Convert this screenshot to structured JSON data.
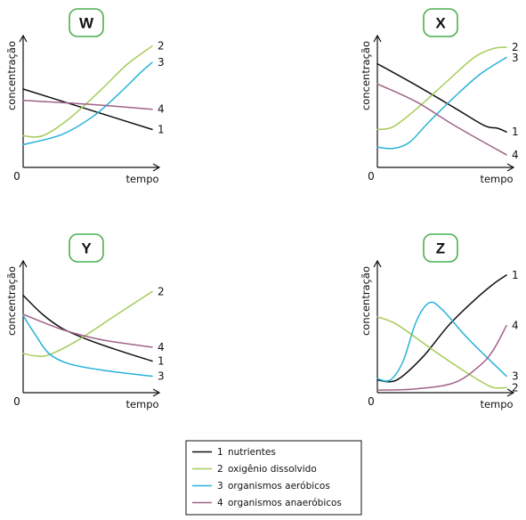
{
  "colors": {
    "nutrientes": "#111111",
    "oxigenio": "#a6cc5a",
    "aerobicos": "#27b2d8",
    "anaerobicos": "#a0628a",
    "badge_border": "#4caf50"
  },
  "chart_data": [
    {
      "type": "line",
      "panel": "W",
      "xlabel": "tempo",
      "ylabel": "concentração",
      "origin": "0",
      "xlim": [
        0,
        10
      ],
      "ylim": [
        0,
        10
      ],
      "series": [
        {
          "label": "1",
          "key": "nutrientes",
          "points": [
            [
              0,
              6.2
            ],
            [
              5,
              4.6
            ],
            [
              10,
              3.0
            ]
          ]
        },
        {
          "label": "2",
          "key": "oxigenio",
          "points": [
            [
              0,
              2.5
            ],
            [
              1.5,
              2.5
            ],
            [
              3.5,
              3.8
            ],
            [
              6,
              6.1
            ],
            [
              8,
              8.1
            ],
            [
              10,
              9.6
            ]
          ]
        },
        {
          "label": "3",
          "key": "aerobicos",
          "points": [
            [
              0,
              1.8
            ],
            [
              3,
              2.6
            ],
            [
              5.5,
              4.1
            ],
            [
              7.5,
              5.9
            ],
            [
              9,
              7.4
            ],
            [
              10,
              8.3
            ]
          ]
        },
        {
          "label": "4",
          "key": "anaerobicos",
          "points": [
            [
              0,
              5.3
            ],
            [
              5,
              5.0
            ],
            [
              10,
              4.6
            ]
          ]
        }
      ]
    },
    {
      "type": "line",
      "panel": "X",
      "xlabel": "tempo",
      "ylabel": "concentração",
      "origin": "0",
      "xlim": [
        0,
        10
      ],
      "ylim": [
        0,
        10
      ],
      "series": [
        {
          "label": "1",
          "key": "nutrientes",
          "points": [
            [
              0,
              8.2
            ],
            [
              3,
              6.5
            ],
            [
              6,
              4.7
            ],
            [
              8.3,
              3.3
            ],
            [
              9.3,
              3.1
            ],
            [
              10,
              2.8
            ]
          ]
        },
        {
          "label": "2",
          "key": "oxigenio",
          "points": [
            [
              0,
              3.0
            ],
            [
              1.2,
              3.2
            ],
            [
              3,
              4.6
            ],
            [
              5.5,
              6.9
            ],
            [
              7.5,
              8.7
            ],
            [
              9,
              9.4
            ],
            [
              10,
              9.5
            ]
          ]
        },
        {
          "label": "3",
          "key": "aerobicos",
          "points": [
            [
              0,
              1.6
            ],
            [
              1.2,
              1.5
            ],
            [
              2.5,
              2.0
            ],
            [
              4,
              3.6
            ],
            [
              6,
              5.6
            ],
            [
              8,
              7.4
            ],
            [
              10,
              8.7
            ]
          ]
        },
        {
          "label": "4",
          "key": "anaerobicos",
          "points": [
            [
              0,
              6.6
            ],
            [
              3,
              5.2
            ],
            [
              6,
              3.3
            ],
            [
              10,
              1.0
            ]
          ]
        }
      ]
    },
    {
      "type": "line",
      "panel": "Y",
      "xlabel": "tempo",
      "ylabel": "concentração",
      "origin": "0",
      "xlim": [
        0,
        10
      ],
      "ylim": [
        0,
        10
      ],
      "series": [
        {
          "label": "1",
          "key": "nutrientes",
          "points": [
            [
              0,
              7.7
            ],
            [
              1.5,
              6.2
            ],
            [
              3,
              5.1
            ],
            [
              5,
              4.2
            ],
            [
              7.5,
              3.3
            ],
            [
              10,
              2.5
            ]
          ]
        },
        {
          "label": "2",
          "key": "oxigenio",
          "points": [
            [
              0,
              3.1
            ],
            [
              1,
              2.9
            ],
            [
              2,
              3.0
            ],
            [
              4,
              4.0
            ],
            [
              7,
              6.0
            ],
            [
              10,
              8.0
            ]
          ]
        },
        {
          "label": "3",
          "key": "aerobicos",
          "points": [
            [
              0,
              6.1
            ],
            [
              1,
              4.5
            ],
            [
              2,
              3.1
            ],
            [
              3.5,
              2.3
            ],
            [
              6,
              1.8
            ],
            [
              10,
              1.3
            ]
          ]
        },
        {
          "label": "4",
          "key": "anaerobicos",
          "points": [
            [
              0,
              6.2
            ],
            [
              3,
              5.0
            ],
            [
              6,
              4.2
            ],
            [
              10,
              3.6
            ]
          ]
        }
      ]
    },
    {
      "type": "line",
      "panel": "Z",
      "xlabel": "tempo",
      "ylabel": "concentração",
      "origin": "0",
      "xlim": [
        0,
        10
      ],
      "ylim": [
        0,
        10
      ],
      "series": [
        {
          "label": "1",
          "key": "nutrientes",
          "points": [
            [
              0,
              1.0
            ],
            [
              1.5,
              1.0
            ],
            [
              3.5,
              2.8
            ],
            [
              5.5,
              5.3
            ],
            [
              7.5,
              7.3
            ],
            [
              9,
              8.6
            ],
            [
              10,
              9.3
            ]
          ]
        },
        {
          "label": "2",
          "key": "oxigenio",
          "points": [
            [
              0,
              6.0
            ],
            [
              1.5,
              5.4
            ],
            [
              4,
              3.6
            ],
            [
              6,
              2.2
            ],
            [
              8,
              0.9
            ],
            [
              9,
              0.4
            ],
            [
              10,
              0.4
            ]
          ]
        },
        {
          "label": "3",
          "key": "aerobicos",
          "points": [
            [
              0,
              1.1
            ],
            [
              1,
              1.0
            ],
            [
              2,
              2.5
            ],
            [
              3,
              5.6
            ],
            [
              4,
              7.1
            ],
            [
              5,
              6.6
            ],
            [
              7,
              4.3
            ],
            [
              10,
              1.3
            ]
          ]
        },
        {
          "label": "4",
          "key": "anaerobicos",
          "points": [
            [
              0,
              0.2
            ],
            [
              3,
              0.3
            ],
            [
              6,
              0.8
            ],
            [
              8,
              2.2
            ],
            [
              9,
              3.4
            ],
            [
              10,
              5.3
            ]
          ]
        }
      ]
    }
  ],
  "legend": [
    {
      "number": "1",
      "label": "nutrientes",
      "key": "nutrientes"
    },
    {
      "number": "2",
      "label": "oxigênio dissolvido",
      "key": "oxigenio"
    },
    {
      "number": "3",
      "label": "organismos aeróbicos",
      "key": "aerobicos"
    },
    {
      "number": "4",
      "label": "organismos anaeróbicos",
      "key": "anaerobicos"
    }
  ]
}
